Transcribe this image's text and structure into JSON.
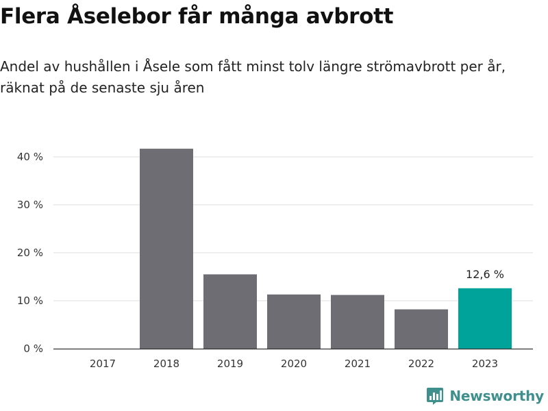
{
  "title": "Flera Åselebor får många avbrott",
  "subtitle": "Andel av hushållen i Åsele som fått minst tolv längre strömavbrott per år, räknat på de senaste sju åren",
  "brand": {
    "name": "Newsworthy",
    "icon": "newsworthy-logo-icon"
  },
  "colors": {
    "bar": "#6d6d73",
    "highlight": "#00a39a",
    "grid": "#dddddd",
    "axis": "#333333",
    "brand": "#3f8f8c"
  },
  "chart_data": {
    "type": "bar",
    "categories": [
      "2017",
      "2018",
      "2019",
      "2020",
      "2021",
      "2022",
      "2023"
    ],
    "values": [
      0,
      41.7,
      15.5,
      11.3,
      11.2,
      8.2,
      12.6
    ],
    "ylim": [
      0,
      40
    ],
    "yticks": [
      0,
      10,
      20,
      30,
      40
    ],
    "ytick_labels": [
      "0 %",
      "10 %",
      "20 %",
      "30 %",
      "40 %"
    ],
    "highlight_index": 6,
    "annotation": "12,6 %",
    "grid": true
  }
}
